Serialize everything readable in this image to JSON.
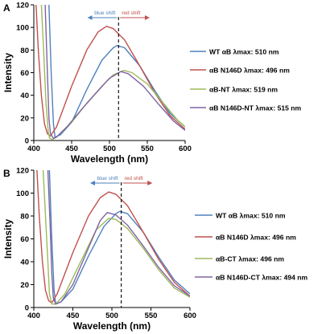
{
  "chart_data": [
    {
      "type": "line",
      "panel_label": "A",
      "xlabel": "Wavelength (nm)",
      "ylabel": "Intensity",
      "xlim": [
        400,
        600
      ],
      "ylim": [
        0,
        120
      ],
      "xticks": [
        400,
        450,
        500,
        550,
        600
      ],
      "yticks": [
        0,
        20,
        40,
        60,
        80,
        100,
        120
      ],
      "grid": false,
      "legend_position": "right",
      "vline_x": 512,
      "annotations": {
        "blue_shift": "blue shift",
        "red_shift": "red shift"
      },
      "series": [
        {
          "name": "WT αB λmax: 510 nm",
          "color": "#4F81BD",
          "points": [
            [
              420,
              120
            ],
            [
              423,
              60
            ],
            [
              426,
              15
            ],
            [
              428,
              3
            ],
            [
              435,
              5
            ],
            [
              450,
              16
            ],
            [
              470,
              45
            ],
            [
              490,
              71
            ],
            [
              505,
              82
            ],
            [
              510,
              84
            ],
            [
              520,
              82
            ],
            [
              540,
              66
            ],
            [
              560,
              44
            ],
            [
              580,
              24
            ],
            [
              600,
              12
            ]
          ]
        },
        {
          "name": "αB N146D λmax: 496 nm",
          "color": "#C0504D",
          "points": [
            [
              403,
              120
            ],
            [
              406,
              80
            ],
            [
              410,
              40
            ],
            [
              414,
              15
            ],
            [
              418,
              6
            ],
            [
              422,
              4
            ],
            [
              430,
              12
            ],
            [
              450,
              48
            ],
            [
              470,
              80
            ],
            [
              485,
              96
            ],
            [
              496,
              101
            ],
            [
              505,
              99
            ],
            [
              520,
              89
            ],
            [
              540,
              66
            ],
            [
              560,
              42
            ],
            [
              580,
              22
            ],
            [
              600,
              10
            ]
          ]
        },
        {
          "name": "αB-NT λmax: 519 nm",
          "color": "#9BBB59",
          "points": [
            [
              410,
              120
            ],
            [
              413,
              80
            ],
            [
              416,
              35
            ],
            [
              419,
              8
            ],
            [
              421,
              2
            ],
            [
              425,
              1
            ],
            [
              430,
              3
            ],
            [
              450,
              16
            ],
            [
              470,
              33
            ],
            [
              490,
              48
            ],
            [
              505,
              58
            ],
            [
              519,
              62
            ],
            [
              530,
              60
            ],
            [
              550,
              50
            ],
            [
              570,
              34
            ],
            [
              590,
              18
            ],
            [
              600,
              12
            ]
          ]
        },
        {
          "name": "αB N146D-NT λmax: 515 nm",
          "color": "#8064A2",
          "points": [
            [
              415,
              120
            ],
            [
              418,
              60
            ],
            [
              420,
              20
            ],
            [
              422,
              6
            ],
            [
              426,
              2
            ],
            [
              430,
              3
            ],
            [
              445,
              13
            ],
            [
              465,
              29
            ],
            [
              485,
              44
            ],
            [
              500,
              55
            ],
            [
              515,
              61
            ],
            [
              525,
              59
            ],
            [
              545,
              48
            ],
            [
              565,
              32
            ],
            [
              585,
              17
            ],
            [
              600,
              9
            ]
          ]
        }
      ]
    },
    {
      "type": "line",
      "panel_label": "B",
      "xlabel": "Wavelength (nm)",
      "ylabel": "Intensity",
      "xlim": [
        400,
        600
      ],
      "ylim": [
        0,
        120
      ],
      "xticks": [
        400,
        450,
        500,
        550,
        600
      ],
      "yticks": [
        0,
        20,
        40,
        60,
        80,
        100,
        120
      ],
      "grid": false,
      "legend_position": "right",
      "vline_x": 512,
      "annotations": {
        "blue_shift": "blue shift",
        "red_shift": "red shift"
      },
      "series": [
        {
          "name": "WT αB λmax: 510 nm",
          "color": "#4F81BD",
          "points": [
            [
              420,
              120
            ],
            [
              423,
              60
            ],
            [
              426,
              15
            ],
            [
              428,
              3
            ],
            [
              435,
              5
            ],
            [
              450,
              16
            ],
            [
              470,
              45
            ],
            [
              490,
              71
            ],
            [
              505,
              82
            ],
            [
              510,
              84
            ],
            [
              520,
              82
            ],
            [
              540,
              66
            ],
            [
              560,
              44
            ],
            [
              580,
              24
            ],
            [
              600,
              12
            ]
          ]
        },
        {
          "name": "αB N146D λmax: 496 nm",
          "color": "#C0504D",
          "points": [
            [
              404,
              120
            ],
            [
              407,
              80
            ],
            [
              411,
              40
            ],
            [
              415,
              15
            ],
            [
              419,
              6
            ],
            [
              423,
              4
            ],
            [
              430,
              12
            ],
            [
              450,
              48
            ],
            [
              470,
              80
            ],
            [
              485,
              96
            ],
            [
              496,
              101
            ],
            [
              505,
              99
            ],
            [
              520,
              89
            ],
            [
              540,
              66
            ],
            [
              560,
              42
            ],
            [
              580,
              22
            ],
            [
              600,
              10
            ]
          ]
        },
        {
          "name": "αB-CT λmax: 496 nm",
          "color": "#9BBB59",
          "points": [
            [
              412,
              120
            ],
            [
              415,
              80
            ],
            [
              418,
              40
            ],
            [
              420,
              12
            ],
            [
              423,
              3
            ],
            [
              428,
              3
            ],
            [
              440,
              12
            ],
            [
              460,
              40
            ],
            [
              480,
              68
            ],
            [
              496,
              78
            ],
            [
              505,
              77
            ],
            [
              520,
              69
            ],
            [
              540,
              52
            ],
            [
              560,
              33
            ],
            [
              580,
              17
            ],
            [
              600,
              9
            ]
          ]
        },
        {
          "name": "αB N146D-CT λmax: 494 nm",
          "color": "#8064A2",
          "points": [
            [
              418,
              120
            ],
            [
              421,
              70
            ],
            [
              423,
              30
            ],
            [
              425,
              8
            ],
            [
              428,
              3
            ],
            [
              435,
              5
            ],
            [
              450,
              20
            ],
            [
              470,
              52
            ],
            [
              485,
              76
            ],
            [
              494,
              83
            ],
            [
              505,
              81
            ],
            [
              520,
              72
            ],
            [
              540,
              54
            ],
            [
              560,
              35
            ],
            [
              580,
              19
            ],
            [
              600,
              10
            ]
          ]
        }
      ]
    }
  ]
}
